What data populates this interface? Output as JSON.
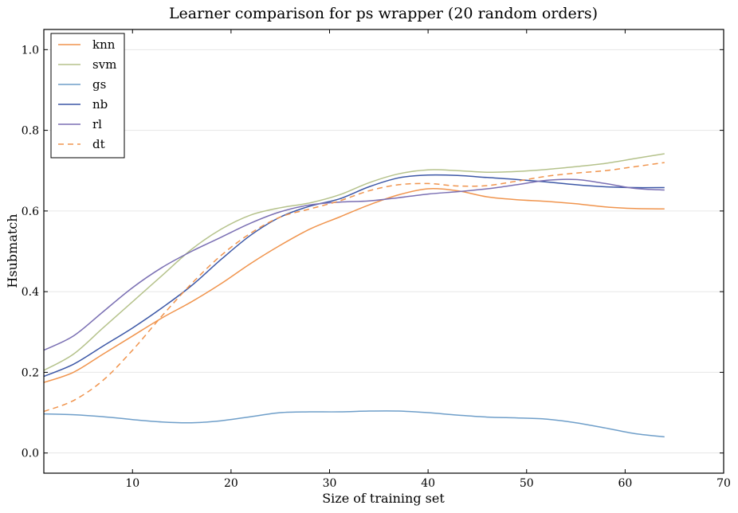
{
  "chart_data": {
    "type": "line",
    "title": "Learner comparison for ps wrapper (20 random orders)",
    "xlabel": "Size of training set",
    "ylabel": "Hsubmatch",
    "xlim": [
      1,
      70
    ],
    "ylim": [
      -0.05,
      1.05
    ],
    "xticks": [
      10,
      20,
      30,
      40,
      50,
      60,
      70
    ],
    "yticks": [
      0.0,
      0.2,
      0.4,
      0.6,
      0.8,
      1.0
    ],
    "xtick_labels": [
      "10",
      "20",
      "30",
      "40",
      "50",
      "60",
      "70"
    ],
    "ytick_labels": [
      "0.0",
      "0.2",
      "0.4",
      "0.6",
      "0.8",
      "1.0"
    ],
    "grid": "horizontal",
    "legend_position": "top-left",
    "series": [
      {
        "name": "knn",
        "color": "#f0944d",
        "dash": "solid",
        "x": [
          1,
          4,
          7,
          10,
          13,
          16,
          19,
          22,
          25,
          28,
          31,
          34,
          37,
          40,
          43,
          46,
          49,
          52,
          55,
          58,
          61,
          64
        ],
        "y": [
          0.175,
          0.2,
          0.245,
          0.29,
          0.335,
          0.375,
          0.42,
          0.47,
          0.515,
          0.555,
          0.585,
          0.615,
          0.64,
          0.655,
          0.65,
          0.635,
          0.628,
          0.624,
          0.618,
          0.61,
          0.606,
          0.605
        ]
      },
      {
        "name": "svm",
        "color": "#b5c28b",
        "dash": "solid",
        "x": [
          1,
          4,
          7,
          10,
          13,
          16,
          19,
          22,
          25,
          28,
          31,
          34,
          37,
          40,
          43,
          46,
          49,
          52,
          55,
          58,
          61,
          64
        ],
        "y": [
          0.205,
          0.245,
          0.31,
          0.375,
          0.44,
          0.505,
          0.555,
          0.59,
          0.608,
          0.62,
          0.64,
          0.67,
          0.692,
          0.702,
          0.7,
          0.696,
          0.698,
          0.703,
          0.71,
          0.718,
          0.73,
          0.742
        ]
      },
      {
        "name": "gs",
        "color": "#6e9ec9",
        "dash": "solid",
        "x": [
          1,
          4,
          7,
          10,
          13,
          16,
          19,
          22,
          25,
          28,
          31,
          34,
          37,
          40,
          43,
          46,
          49,
          52,
          55,
          58,
          61,
          64
        ],
        "y": [
          0.097,
          0.095,
          0.09,
          0.083,
          0.077,
          0.075,
          0.08,
          0.09,
          0.1,
          0.102,
          0.102,
          0.104,
          0.104,
          0.1,
          0.094,
          0.089,
          0.087,
          0.084,
          0.075,
          0.062,
          0.048,
          0.04
        ]
      },
      {
        "name": "nb",
        "color": "#3c57a6",
        "dash": "solid",
        "x": [
          1,
          4,
          7,
          10,
          13,
          16,
          19,
          22,
          25,
          28,
          31,
          34,
          37,
          40,
          43,
          46,
          49,
          52,
          55,
          58,
          61,
          64
        ],
        "y": [
          0.19,
          0.22,
          0.265,
          0.31,
          0.36,
          0.415,
          0.48,
          0.54,
          0.585,
          0.612,
          0.63,
          0.66,
          0.682,
          0.689,
          0.688,
          0.683,
          0.678,
          0.672,
          0.665,
          0.66,
          0.658,
          0.658
        ]
      },
      {
        "name": "rl",
        "color": "#7a6fb3",
        "dash": "solid",
        "x": [
          1,
          4,
          7,
          10,
          13,
          16,
          19,
          22,
          25,
          28,
          31,
          34,
          37,
          40,
          43,
          46,
          49,
          52,
          55,
          58,
          61,
          64
        ],
        "y": [
          0.255,
          0.29,
          0.35,
          0.41,
          0.46,
          0.5,
          0.535,
          0.57,
          0.598,
          0.615,
          0.622,
          0.625,
          0.633,
          0.642,
          0.648,
          0.655,
          0.665,
          0.676,
          0.678,
          0.668,
          0.656,
          0.652
        ]
      },
      {
        "name": "dt",
        "color": "#f0944d",
        "dash": "dashed",
        "x": [
          1,
          4,
          7,
          10,
          13,
          16,
          19,
          22,
          25,
          28,
          31,
          34,
          37,
          40,
          43,
          46,
          49,
          52,
          55,
          58,
          61,
          64
        ],
        "y": [
          0.103,
          0.13,
          0.18,
          0.255,
          0.34,
          0.42,
          0.49,
          0.545,
          0.585,
          0.605,
          0.625,
          0.65,
          0.665,
          0.668,
          0.662,
          0.663,
          0.674,
          0.686,
          0.694,
          0.7,
          0.71,
          0.72
        ]
      }
    ]
  }
}
